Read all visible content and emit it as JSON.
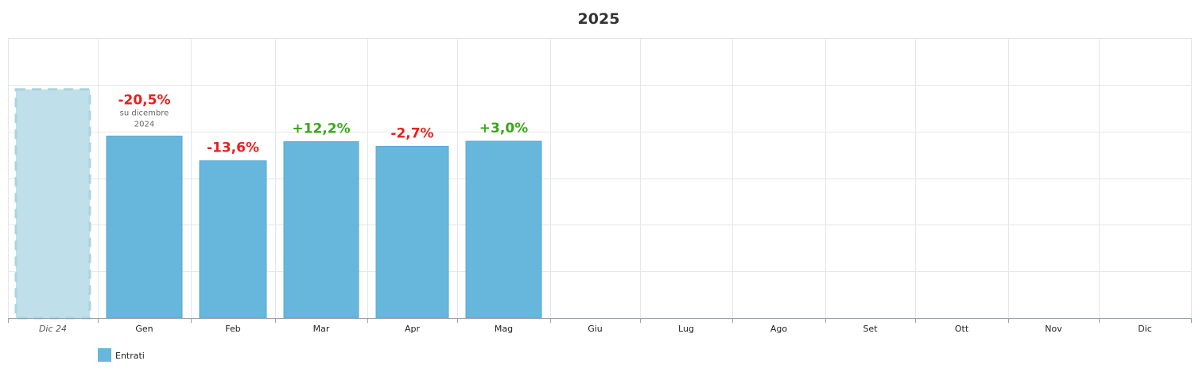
{
  "chart_data": {
    "type": "bar",
    "title": "2025",
    "reference": {
      "label": "Dic 24",
      "value": 490
    },
    "categories": [
      "Gen",
      "Feb",
      "Mar",
      "Apr",
      "Mag",
      "Giu",
      "Lug",
      "Ago",
      "Set",
      "Ott",
      "Nov",
      "Dic"
    ],
    "series": [
      {
        "name": "Entrati",
        "values": [
          390,
          337,
          378,
          368,
          379,
          null,
          null,
          null,
          null,
          null,
          null,
          null
        ]
      }
    ],
    "changes": [
      "-20,5%",
      "-13,6%",
      "+12,2%",
      "-2,7%",
      "+3,0%"
    ],
    "first_change_note": [
      "su dicembre",
      "2024"
    ],
    "ylim": [
      0,
      600
    ],
    "grid": true,
    "legend_position": "bottom-left",
    "colors": {
      "bar": "#67b6dc",
      "reference_fill": "#bfe0ea",
      "reference_stroke": "#a9d3e3",
      "negative": "#e8201c",
      "positive": "#3aa619",
      "grid": "#e3e7ec"
    }
  }
}
